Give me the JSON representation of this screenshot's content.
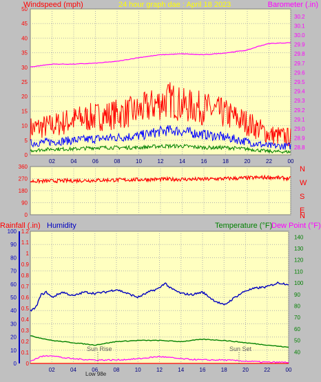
{
  "header": {
    "wind_label": "Windspeed (mph)",
    "graph_title": "24 hour graph dae : April 18 2023",
    "baro_label": "Barometer (.in)"
  },
  "compass": [
    "N",
    "W",
    "S",
    "E",
    "N"
  ],
  "lower_header": {
    "rain_label": "Rainfall (.in)",
    "humidity_label": "Humidity",
    "temp_label": "Temperature (°F)",
    "dew_label": "Dew Point (°F)"
  },
  "annotations": {
    "sunrise": "Sun Rise",
    "sunset": "Sun Set",
    "low_tide": "Low 98e"
  },
  "colors": {
    "plot_bg": "#ffffc0",
    "frame_bg": "#c0c0c0",
    "wind_gust": "#ff0000",
    "wind_avg": "#0000ff",
    "wind_low": "#008000",
    "barometer": "#ff00ff",
    "direction": "#ff0000",
    "humidity": "#0000c0",
    "temperature": "#008000",
    "dew_point": "#ff00ff",
    "rainfall": "#ff0000"
  },
  "chart_data": [
    {
      "type": "line",
      "title": "24 hour graph dae : April 18 2023",
      "x_ticks": [
        "02",
        "04",
        "06",
        "08",
        "10",
        "12",
        "14",
        "16",
        "18",
        "20",
        "22",
        "00"
      ],
      "y_left": {
        "label": "Windspeed (mph)",
        "ticks": [
          0,
          5,
          10,
          15,
          20,
          25,
          30,
          35,
          40,
          45,
          50
        ],
        "range": [
          0,
          50
        ]
      },
      "y_right": {
        "label": "Barometer (.in)",
        "ticks": [
          28.8,
          28.9,
          29.0,
          29.1,
          29.2,
          29.3,
          29.4,
          29.5,
          29.6,
          29.7,
          29.8,
          29.9,
          30.0,
          30.1,
          30.2
        ],
        "range": [
          28.72,
          30.28
        ]
      },
      "series": [
        {
          "name": "Windspeed (mph)",
          "axis": "left",
          "color": "#ff0000",
          "hours": [
            0,
            2,
            4,
            6,
            8,
            10,
            12,
            13,
            14,
            16,
            18,
            20,
            22,
            24
          ],
          "values": [
            9,
            10,
            12,
            13,
            14,
            15,
            18,
            19,
            17,
            16,
            14,
            11,
            7,
            6
          ]
        },
        {
          "name": "Average",
          "axis": "left",
          "color": "#0000ff",
          "hours": [
            0,
            2,
            4,
            6,
            8,
            10,
            12,
            13,
            14,
            16,
            18,
            20,
            22,
            24
          ],
          "values": [
            4,
            4.5,
            5,
            5.5,
            6,
            6.5,
            8,
            8.5,
            8,
            7,
            6,
            4.5,
            3,
            3
          ]
        },
        {
          "name": "Low",
          "axis": "left",
          "color": "#008000",
          "hours": [
            0,
            2,
            4,
            6,
            8,
            10,
            12,
            14,
            16,
            18,
            20,
            22,
            24
          ],
          "values": [
            1.5,
            2,
            2,
            2.5,
            2.5,
            2.5,
            3,
            3,
            2.5,
            2.5,
            2,
            1.2,
            1
          ]
        },
        {
          "name": "Barometer (.in)",
          "axis": "right",
          "color": "#ff00ff",
          "hours": [
            0,
            2,
            4,
            6,
            8,
            10,
            12,
            14,
            16,
            18,
            20,
            21,
            22,
            24
          ],
          "values": [
            29.66,
            29.69,
            29.69,
            29.7,
            29.72,
            29.76,
            29.79,
            29.8,
            29.79,
            29.81,
            29.84,
            29.88,
            29.91,
            29.92
          ]
        }
      ]
    },
    {
      "type": "line",
      "x_ticks": [
        "02",
        "04",
        "06",
        "08",
        "10",
        "12",
        "14",
        "16",
        "18",
        "20",
        "22",
        "00"
      ],
      "y_left": {
        "ticks": [
          0,
          90,
          180,
          270,
          360
        ],
        "range": [
          0,
          360
        ]
      },
      "y_right": {
        "ticks": [
          "N",
          "W",
          "S",
          "E",
          "N"
        ]
      },
      "series": [
        {
          "name": "Wind direction",
          "axis": "left",
          "color": "#ff0000",
          "hours": [
            0,
            4,
            8,
            12,
            16,
            20,
            22,
            24
          ],
          "values": [
            250,
            255,
            260,
            265,
            265,
            275,
            280,
            270
          ]
        }
      ]
    },
    {
      "type": "line",
      "x_ticks": [
        "02",
        "04",
        "06",
        "08",
        "10",
        "12",
        "14",
        "16",
        "18",
        "20",
        "22",
        "00"
      ],
      "y_left_outer": {
        "label": "Humidity",
        "ticks": [
          0,
          10,
          20,
          30,
          40,
          50,
          60,
          70,
          80,
          90,
          100
        ],
        "range": [
          0,
          100
        ]
      },
      "y_left_inner": {
        "label": "Rainfall (.in)",
        "ticks": [
          0,
          0.1,
          0.2,
          0.3,
          0.4,
          0.5,
          0.6,
          0.7,
          0.8,
          0.9,
          1,
          1.1,
          1.2
        ],
        "range": [
          0,
          1.2
        ]
      },
      "y_right": {
        "label": "Temperature (°F)",
        "ticks": [
          40,
          50,
          60,
          70,
          80,
          90,
          100,
          110,
          120,
          130,
          140
        ],
        "range": [
          30,
          145
        ]
      },
      "series": [
        {
          "name": "Humidity",
          "axis": "left_outer",
          "color": "#0000c0",
          "hours": [
            0,
            0.5,
            1,
            1.5,
            2,
            3,
            4,
            5,
            6,
            7,
            8,
            9,
            10,
            11,
            12,
            12.5,
            13,
            14,
            15,
            16,
            17,
            18,
            19,
            20,
            21,
            22,
            23,
            24
          ],
          "values": [
            40,
            42,
            52,
            54,
            50,
            54,
            51,
            54,
            53,
            54,
            56,
            53,
            50,
            54,
            57,
            61,
            57,
            53,
            52,
            54,
            48,
            44,
            50,
            55,
            57,
            58,
            61,
            60
          ]
        },
        {
          "name": "Temperature (°F)",
          "axis": "right",
          "color": "#008000",
          "hours": [
            0,
            2,
            4,
            6,
            8,
            10,
            12,
            14,
            16,
            18,
            20,
            22,
            24
          ],
          "values": [
            54,
            50,
            48,
            46,
            49,
            50,
            50,
            49,
            51,
            50,
            48,
            46,
            44
          ]
        },
        {
          "name": "Dew Point (°F)",
          "axis": "right",
          "color": "#ff00ff",
          "hours": [
            0,
            1,
            2,
            3,
            4,
            6,
            8,
            10,
            12,
            14,
            16,
            18,
            20,
            22,
            24
          ],
          "values": [
            32,
            36,
            37,
            35,
            34,
            33,
            33,
            34,
            36,
            34,
            33,
            33,
            32,
            31,
            31
          ]
        },
        {
          "name": "Rainfall (.in)",
          "axis": "left_inner",
          "color": "#ff0000",
          "hours": [
            0,
            24
          ],
          "values": [
            0,
            0
          ]
        }
      ],
      "annotations": [
        {
          "label": "Sun Rise",
          "hour": 5.6
        },
        {
          "label": "Sun Set",
          "hour": 19.6
        }
      ]
    }
  ]
}
